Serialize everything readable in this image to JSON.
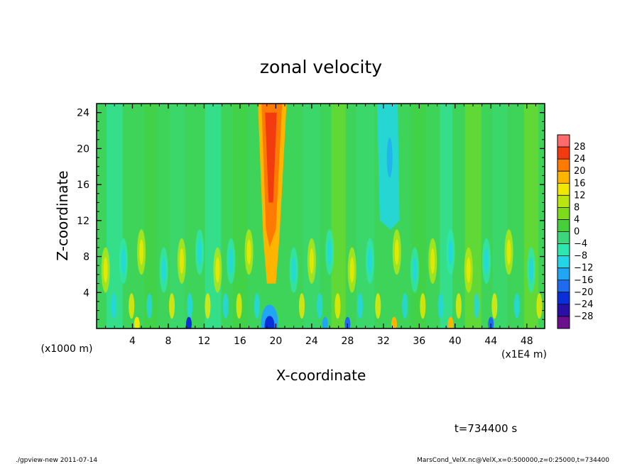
{
  "chart_data": {
    "type": "heatmap",
    "title": "zonal velocity",
    "xlabel": "X-coordinate",
    "ylabel": "Z-coordinate",
    "x_unit_label": "(x1E4 m)",
    "y_unit_label": "(x1000 m)",
    "xlim": [
      0,
      50
    ],
    "ylim": [
      0,
      25
    ],
    "x_ticks": [
      "4",
      "8",
      "12",
      "16",
      "20",
      "24",
      "28",
      "32",
      "36",
      "40",
      "44",
      "48"
    ],
    "y_ticks": [
      "4",
      "8",
      "12",
      "16",
      "20",
      "24"
    ],
    "colorbar_levels": [
      "28",
      "24",
      "20",
      "16",
      "12",
      "8",
      "4",
      "0",
      "−4",
      "−8",
      "−12",
      "−16",
      "−20",
      "−24",
      "−28"
    ],
    "colorbar_colors": [
      "#6b0f8c",
      "#2a0fa6",
      "#0a2fd8",
      "#1f6bf0",
      "#20a6f5",
      "#22d6e8",
      "#2ee6b0",
      "#3ad87a",
      "#46cf3a",
      "#7cdc1a",
      "#b9e610",
      "#f0e800",
      "#ffb400",
      "#ff7a00",
      "#f23c10",
      "#ff6a6a"
    ],
    "time_label": "t=734400 s",
    "features": [
      {
        "x": 19.5,
        "description": "strong positive jet, 16-28, extending from surface to top"
      },
      {
        "x": 32.5,
        "description": "negative band, -8 to -12, from 12 to 24 km"
      },
      {
        "x": 19.0,
        "description": "negative surface core, about -20"
      }
    ]
  },
  "footer": {
    "left": "./gpview-new   2011-07-14",
    "right": "MarsCond_VelX.nc@VelX,x=0:500000,z=0:25000,t=734400"
  }
}
